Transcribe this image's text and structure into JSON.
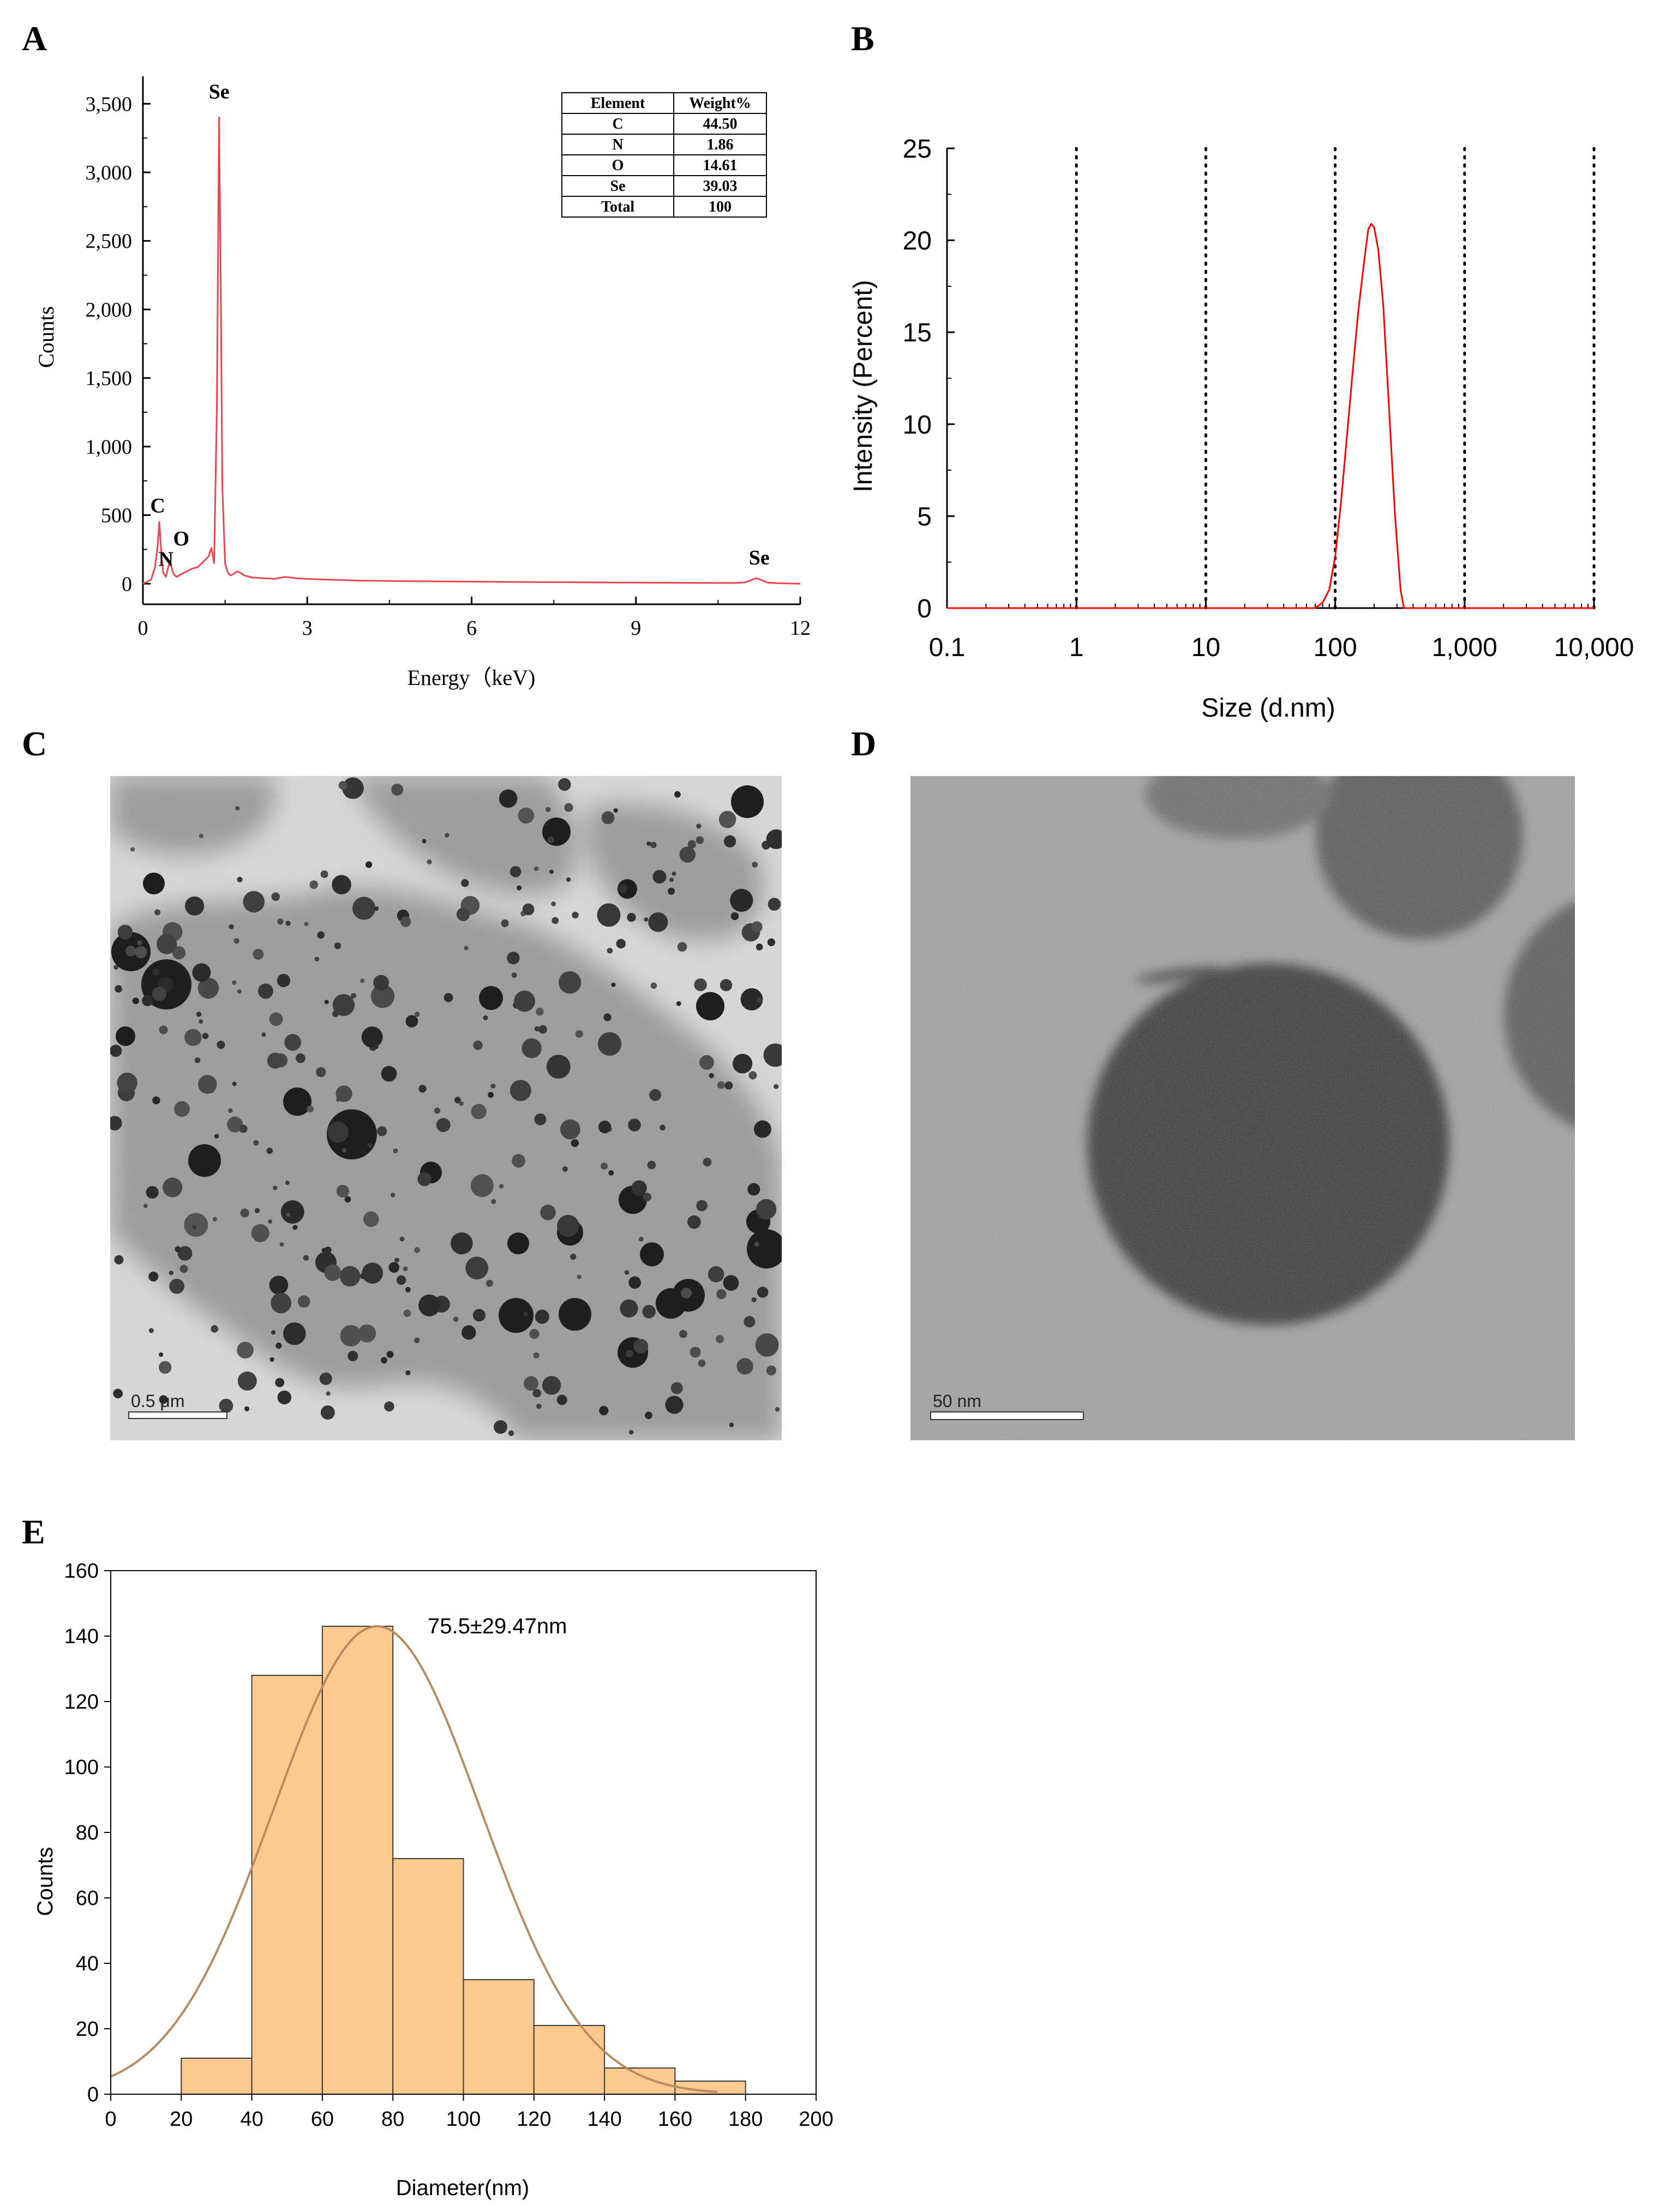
{
  "panels": {
    "A": "A",
    "B": "B",
    "C": "C",
    "D": "D",
    "E": "E"
  },
  "colors": {
    "eds_line": "#e8474f",
    "dls_line": "#ff0000",
    "hist_fill": "#fcc98e",
    "hist_stroke": "#3a3a3a",
    "fit_line": "#b98a62"
  },
  "chart_data": [
    {
      "id": "A",
      "type": "line",
      "xlabel": "Energy（keV)",
      "ylabel": "Counts",
      "xlim": [
        0,
        12
      ],
      "ylim": [
        -150,
        3700
      ],
      "xticks": [
        0,
        3,
        6,
        9,
        12
      ],
      "xtick_labels": [
        "0",
        "3",
        "6",
        "9",
        "12"
      ],
      "yticks": [
        0,
        500,
        1000,
        1500,
        2000,
        2500,
        3000,
        3500
      ],
      "ytick_labels": [
        "0",
        "500",
        "1,000",
        "1,500",
        "2,000",
        "2,500",
        "3,000",
        "3,500"
      ],
      "series": [
        {
          "x": [
            0.0,
            0.15,
            0.22,
            0.27,
            0.3,
            0.33,
            0.37,
            0.42,
            0.46,
            0.5,
            0.54,
            0.58,
            0.62,
            0.7,
            0.8,
            0.9,
            1.0,
            1.1,
            1.2,
            1.25,
            1.3,
            1.35,
            1.39,
            1.42,
            1.45,
            1.5,
            1.55,
            1.6,
            1.65,
            1.72,
            1.78,
            1.85,
            2.0,
            2.2,
            2.4,
            2.6,
            2.8,
            3.0,
            3.5,
            4.0,
            5.0,
            6.0,
            7.0,
            8.0,
            9.0,
            10.0,
            10.8,
            11.0,
            11.1,
            11.2,
            11.3,
            11.4,
            11.6,
            12.0
          ],
          "y": [
            0,
            30,
            120,
            280,
            450,
            260,
            80,
            50,
            120,
            160,
            90,
            60,
            50,
            70,
            90,
            110,
            120,
            160,
            200,
            260,
            150,
            1300,
            3400,
            2200,
            700,
            150,
            80,
            60,
            70,
            90,
            80,
            60,
            45,
            40,
            35,
            50,
            40,
            35,
            28,
            22,
            18,
            15,
            12,
            10,
            8,
            6,
            5,
            10,
            25,
            40,
            25,
            8,
            3,
            0
          ]
        }
      ],
      "annotations": [
        {
          "text": "Se",
          "x": 1.39,
          "y": 3500
        },
        {
          "text": "C",
          "x": 0.27,
          "y": 480
        },
        {
          "text": "N",
          "x": 0.42,
          "y": 90
        },
        {
          "text": "O",
          "x": 0.7,
          "y": 240
        },
        {
          "text": "Se",
          "x": 11.25,
          "y": 100
        }
      ],
      "table": {
        "headers": [
          "Element",
          "Weight%"
        ],
        "rows": [
          [
            "C",
            "44.50"
          ],
          [
            "N",
            "1.86"
          ],
          [
            "O",
            "14.61"
          ],
          [
            "Se",
            "39.03"
          ],
          [
            "Total",
            "100"
          ]
        ]
      }
    },
    {
      "id": "B",
      "type": "line",
      "xscale": "log",
      "xlabel": "Size (d.nm)",
      "ylabel": "Intensity (Percent)",
      "xlim": [
        0.1,
        10000
      ],
      "ylim": [
        0,
        25
      ],
      "xticks": [
        0.1,
        1,
        10,
        100,
        1000,
        10000
      ],
      "xtick_labels": [
        "0.1",
        "1",
        "10",
        "100",
        "1,000",
        "10,000"
      ],
      "yticks": [
        0,
        5,
        10,
        15,
        20,
        25
      ],
      "ytick_labels": [
        "0",
        "5",
        "10",
        "15",
        "20",
        "25"
      ],
      "grid_x": [
        1,
        10,
        100,
        1000,
        10000
      ],
      "series": [
        {
          "x": [
            0.1,
            70,
            80,
            90,
            100,
            110,
            122,
            135,
            150,
            165,
            180,
            190,
            200,
            215,
            235,
            260,
            290,
            320,
            340,
            10000
          ],
          "y": [
            0,
            0,
            0.3,
            1,
            2.8,
            5.5,
            9,
            12.5,
            16,
            18.5,
            20.6,
            20.9,
            20.7,
            19.5,
            16.5,
            11,
            5,
            1,
            0,
            0
          ]
        }
      ]
    },
    {
      "id": "E",
      "type": "bar",
      "xlabel": "Diameter(nm)",
      "ylabel": "Counts",
      "xlim": [
        0,
        200
      ],
      "ylim": [
        0,
        160
      ],
      "xticks": [
        0,
        20,
        40,
        60,
        80,
        100,
        120,
        140,
        160,
        180,
        200
      ],
      "xtick_labels": [
        "0",
        "20",
        "40",
        "60",
        "80",
        "100",
        "120",
        "140",
        "160",
        "180",
        "200"
      ],
      "yticks": [
        0,
        20,
        40,
        60,
        80,
        100,
        120,
        140,
        160
      ],
      "ytick_labels": [
        "0",
        "20",
        "40",
        "60",
        "80",
        "100",
        "120",
        "140",
        "160"
      ],
      "bins": [
        {
          "from": 20,
          "to": 40,
          "count": 11
        },
        {
          "from": 40,
          "to": 60,
          "count": 128
        },
        {
          "from": 60,
          "to": 80,
          "count": 143
        },
        {
          "from": 80,
          "to": 100,
          "count": 72
        },
        {
          "from": 100,
          "to": 120,
          "count": 35
        },
        {
          "from": 120,
          "to": 140,
          "count": 21
        },
        {
          "from": 140,
          "to": 160,
          "count": 8
        },
        {
          "from": 160,
          "to": 180,
          "count": 4
        }
      ],
      "fit": {
        "type": "gaussian",
        "mean": 75.5,
        "sd": 29.47,
        "peak": 143,
        "range": [
          0,
          172
        ]
      },
      "annotation": "75.5±29.47nm"
    }
  ],
  "images": [
    {
      "id": "C",
      "scale_bar_label": "0.5 μm"
    },
    {
      "id": "D",
      "scale_bar_label": "50 nm"
    }
  ]
}
